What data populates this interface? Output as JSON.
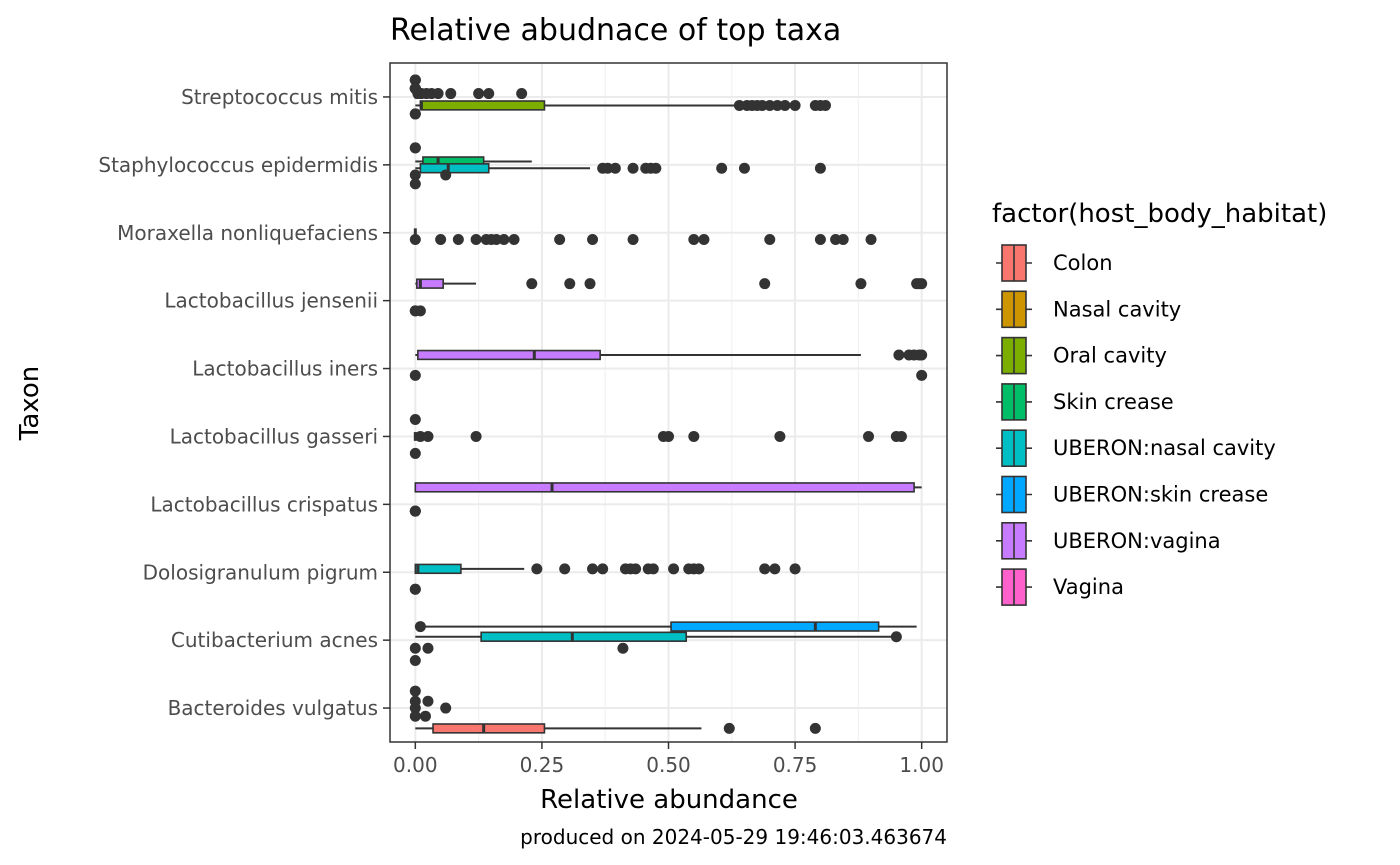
{
  "chart_data": {
    "type": "boxplot",
    "title": "Relative abudnace of top taxa",
    "xlabel": "Relative abundance",
    "ylabel": "Taxon",
    "caption": "produced on 2024-05-29 19:46:03.463674",
    "xlim": [
      -0.05,
      1.05
    ],
    "xticks": [
      0,
      0.25,
      0.5,
      0.75,
      1.0
    ],
    "xtick_labels": [
      "0.00",
      "0.25",
      "0.50",
      "0.75",
      "1.00"
    ],
    "grid": true,
    "legend": {
      "title": "factor(host_body_habitat)",
      "position": "right",
      "entries": [
        {
          "name": "Colon",
          "color": "#F8766D"
        },
        {
          "name": "Nasal cavity",
          "color": "#CD9600"
        },
        {
          "name": "Oral cavity",
          "color": "#7CAE00"
        },
        {
          "name": "Skin crease",
          "color": "#00BE67"
        },
        {
          "name": "UBERON:nasal cavity",
          "color": "#00BFC4"
        },
        {
          "name": "UBERON:skin crease",
          "color": "#00A9FF"
        },
        {
          "name": "UBERON:vagina",
          "color": "#C77CFF"
        },
        {
          "name": "Vagina",
          "color": "#FF61CC"
        }
      ]
    },
    "categories": [
      "Streptococcus mitis",
      "Staphylococcus epidermidis",
      "Moraxella nonliquefaciens",
      "Lactobacillus jensenii",
      "Lactobacillus iners",
      "Lactobacillus gasseri",
      "Lactobacillus crispatus",
      "Dolosigranulum pigrum",
      "Cutibacterium acnes",
      "Bacteroides vulgatus"
    ],
    "boxes": [
      {
        "taxon": 0,
        "group": "Colon",
        "offset": -0.25,
        "zero": true,
        "points": [
          0,
          0,
          0
        ]
      },
      {
        "taxon": 0,
        "group": "Nasal cavity",
        "offset": -0.125,
        "zero": true,
        "points": [
          0,
          0,
          0,
          0,
          0,
          0
        ]
      },
      {
        "taxon": 0,
        "group": "Oral cavity",
        "offset": 0.125,
        "q1": 0.01,
        "median": 0.012,
        "q3": 0.255,
        "wlo": 0.0,
        "whi": 0.63,
        "points": [
          0.64,
          0.655,
          0.665,
          0.675,
          0.685,
          0.7,
          0.715,
          0.73,
          0.75,
          0.79,
          0.8,
          0.81
        ]
      },
      {
        "taxon": 0,
        "group": "Skin crease",
        "offset": 0.25,
        "zero": true,
        "points": [
          0,
          0
        ]
      },
      {
        "taxon": 0,
        "group": "UBERON:nasal cavity",
        "offset": -0.05,
        "zero": false,
        "q1": 0,
        "median": 0,
        "q3": 0,
        "wlo": 0,
        "whi": 0,
        "points": [
          0.005,
          0.012,
          0.022,
          0.032,
          0.045,
          0.07,
          0.125,
          0.145,
          0.21
        ]
      },
      {
        "taxon": 1,
        "group": "Nasal cavity",
        "offset": -0.25,
        "zero": true,
        "points": [
          0,
          0
        ]
      },
      {
        "taxon": 1,
        "group": "Skin crease",
        "offset": -0.05,
        "q1": 0.015,
        "median": 0.045,
        "q3": 0.135,
        "wlo": 0.0,
        "whi": 0.23,
        "points": []
      },
      {
        "taxon": 1,
        "group": "UBERON:nasal cavity",
        "offset": 0.05,
        "q1": 0.01,
        "median": 0.065,
        "q3": 0.145,
        "wlo": 0.0,
        "whi": 0.345,
        "points": [
          0.37,
          0.38,
          0.395,
          0.43,
          0.455,
          0.465,
          0.475,
          0.605,
          0.65,
          0.8
        ]
      },
      {
        "taxon": 1,
        "group": "Colon",
        "offset": 0.15,
        "zero": true,
        "points": [
          0,
          0.06
        ]
      },
      {
        "taxon": 1,
        "group": "Vagina",
        "offset": 0.28,
        "zero": true,
        "points": [
          0
        ]
      },
      {
        "taxon": 2,
        "group": "Nasal cavity",
        "offset": 0,
        "zero": true,
        "pointsOffset": 0.1,
        "points": [
          0,
          0.05,
          0.085,
          0.12,
          0.14,
          0.15,
          0.16,
          0.175,
          0.195,
          0.285,
          0.35,
          0.43,
          0.55,
          0.57,
          0.7,
          0.8,
          0.83,
          0.845,
          0.9
        ]
      },
      {
        "taxon": 3,
        "group": "UBERON:vagina",
        "offset": -0.25,
        "q1": 0.003,
        "median": 0.01,
        "q3": 0.055,
        "wlo": 0.0,
        "whi": 0.12,
        "points": [
          0.23,
          0.305,
          0.345,
          0.69,
          0.88,
          0.99,
          0.995,
          1.0
        ]
      },
      {
        "taxon": 3,
        "group": "Vagina",
        "offset": 0.15,
        "zero": true,
        "points": [
          0.01,
          0,
          0
        ]
      },
      {
        "taxon": 4,
        "group": "UBERON:vagina",
        "offset": -0.2,
        "q1": 0.005,
        "median": 0.235,
        "q3": 0.365,
        "wlo": 0.0,
        "whi": 0.88,
        "points": [
          0.955,
          0.975,
          0.985,
          0.995,
          1.0
        ]
      },
      {
        "taxon": 4,
        "group": "Vagina",
        "offset": 0.1,
        "zero": true,
        "points": [
          0,
          1.0
        ]
      },
      {
        "taxon": 5,
        "group": "UBERON:vagina",
        "offset": -0.25,
        "zero": true,
        "points": [
          0
        ]
      },
      {
        "taxon": 5,
        "group": "Vagina",
        "offset": 0,
        "zero": true,
        "points": [
          0.01,
          0.025,
          0.12,
          0.49,
          0.5,
          0.55,
          0.72,
          0.895,
          0.95,
          0.96
        ]
      },
      {
        "taxon": 5,
        "group": "Colon",
        "offset": 0.25,
        "zero": true,
        "points": [
          0
        ]
      },
      {
        "taxon": 6,
        "group": "UBERON:vagina",
        "offset": -0.25,
        "q1": 0.0,
        "median": 0.27,
        "q3": 0.985,
        "wlo": 0.0,
        "whi": 1.0,
        "points": []
      },
      {
        "taxon": 6,
        "group": "Vagina",
        "offset": 0.1,
        "zero": true,
        "points": [
          0,
          0,
          0
        ]
      },
      {
        "taxon": 7,
        "group": "UBERON:nasal cavity",
        "offset": -0.05,
        "q1": 0.0,
        "median": 0.005,
        "q3": 0.09,
        "wlo": 0.0,
        "whi": 0.215,
        "points": [
          0.24,
          0.295,
          0.35,
          0.37,
          0.415,
          0.425,
          0.435,
          0.46,
          0.47,
          0.51,
          0.54,
          0.55,
          0.56,
          0.69,
          0.71,
          0.75
        ]
      },
      {
        "taxon": 7,
        "group": "Nasal cavity",
        "offset": 0.25,
        "zero": true,
        "points": [
          0,
          0
        ]
      },
      {
        "taxon": 8,
        "group": "UBERON:skin crease",
        "offset": -0.2,
        "q1": 0.505,
        "median": 0.79,
        "q3": 0.915,
        "wlo": 0.0,
        "whi": 0.99,
        "points": [
          0.01
        ]
      },
      {
        "taxon": 8,
        "group": "UBERON:nasal cavity",
        "offset": -0.05,
        "q1": 0.13,
        "median": 0.31,
        "q3": 0.535,
        "wlo": 0.0,
        "whi": 0.945,
        "points": [
          0.95
        ]
      },
      {
        "taxon": 8,
        "group": "Colon",
        "offset": 0.12,
        "zero": true,
        "points": [
          0,
          0.025,
          0.41
        ]
      },
      {
        "taxon": 8,
        "group": "Vagina",
        "offset": 0.3,
        "zero": true,
        "points": [
          0
        ]
      },
      {
        "taxon": 9,
        "group": "Nasal cavity",
        "offset": -0.25,
        "zero": true,
        "points": [
          0
        ]
      },
      {
        "taxon": 9,
        "group": "Skin crease",
        "offset": -0.1,
        "zero": true,
        "points": [
          0,
          0.025
        ]
      },
      {
        "taxon": 9,
        "group": "UBERON:nasal cavity",
        "offset": 0.0,
        "zero": true,
        "points": [
          0,
          0.06
        ]
      },
      {
        "taxon": 9,
        "group": "Oral cavity",
        "offset": 0.12,
        "zero": true,
        "points": [
          0,
          0.02
        ]
      },
      {
        "taxon": 9,
        "group": "Colon",
        "offset": 0.3,
        "q1": 0.035,
        "median": 0.135,
        "q3": 0.255,
        "wlo": 0.0,
        "whi": 0.565,
        "points": [
          0.62,
          0.79
        ]
      }
    ]
  }
}
